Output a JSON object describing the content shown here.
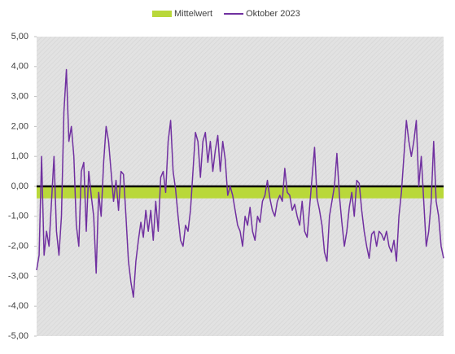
{
  "chart_data": {
    "type": "line",
    "series": [
      {
        "name": "Mittelwert",
        "color": "#b9d83a",
        "range": [
          -0.4,
          0
        ]
      },
      {
        "name": "Oktober 2023",
        "color": "#7030a0",
        "values": [
          -2.8,
          -2.3,
          1.0,
          -2.3,
          -1.5,
          -2.0,
          -0.5,
          1.0,
          -1.5,
          -2.3,
          -1.0,
          2.5,
          3.9,
          1.5,
          2.0,
          1.0,
          -1.3,
          -2.0,
          0.5,
          0.8,
          -1.5,
          0.5,
          -0.3,
          -1.0,
          -2.9,
          -0.2,
          -1.0,
          0.8,
          2.0,
          1.5,
          0.5,
          -0.5,
          0.2,
          -0.8,
          0.5,
          0.4,
          -1.0,
          -2.5,
          -3.2,
          -3.7,
          -2.5,
          -1.8,
          -1.2,
          -1.7,
          -0.8,
          -1.5,
          -0.8,
          -1.8,
          -0.5,
          -1.5,
          0.3,
          0.5,
          -0.2,
          1.5,
          2.2,
          0.5,
          -0.1,
          -1.0,
          -1.8,
          -2.0,
          -1.3,
          -1.5,
          -0.8,
          0.5,
          1.8,
          1.5,
          0.3,
          1.5,
          1.8,
          0.8,
          1.5,
          0.5,
          1.2,
          1.7,
          0.5,
          1.5,
          0.9,
          -0.3,
          0.0,
          -0.3,
          -0.8,
          -1.3,
          -1.5,
          -2.0,
          -1.0,
          -1.3,
          -0.7,
          -1.5,
          -1.8,
          -1.0,
          -1.2,
          -0.5,
          -0.3,
          0.2,
          -0.4,
          -0.8,
          -1.0,
          -0.5,
          -0.3,
          -0.5,
          0.6,
          -0.2,
          -0.3,
          -0.8,
          -0.6,
          -1.0,
          -1.3,
          -0.5,
          -1.5,
          -1.7,
          -0.7,
          0.3,
          1.3,
          -0.4,
          -0.8,
          -1.3,
          -2.2,
          -2.5,
          -1.0,
          -0.5,
          0.0,
          1.1,
          -0.3,
          -1.2,
          -2.0,
          -1.5,
          -0.7,
          -0.2,
          -1.0,
          0.2,
          0.1,
          -0.8,
          -1.5,
          -2.0,
          -2.4,
          -1.6,
          -1.5,
          -2.0,
          -1.5,
          -1.6,
          -1.8,
          -1.5,
          -2.0,
          -2.2,
          -1.8,
          -2.5,
          -1.0,
          -0.2,
          1.0,
          2.2,
          1.5,
          1.0,
          1.5,
          2.2,
          0.0,
          1.0,
          -0.5,
          -2.0,
          -1.5,
          -0.5,
          1.5,
          -0.5,
          -1.0,
          -2.0,
          -2.4
        ]
      }
    ],
    "ylim": [
      -5,
      5
    ],
    "yticks": [
      {
        "value": -5,
        "label": "-5,00"
      },
      {
        "value": -4,
        "label": "-4,00"
      },
      {
        "value": -3,
        "label": "-3,00"
      },
      {
        "value": -2,
        "label": "-2,00"
      },
      {
        "value": -1,
        "label": "-1,00"
      },
      {
        "value": 0,
        "label": "0,00"
      },
      {
        "value": 1,
        "label": "1,00"
      },
      {
        "value": 2,
        "label": "2,00"
      },
      {
        "value": 3,
        "label": "3,00"
      },
      {
        "value": 4,
        "label": "4,00"
      },
      {
        "value": 5,
        "label": "5,00"
      }
    ],
    "legend": "top"
  }
}
